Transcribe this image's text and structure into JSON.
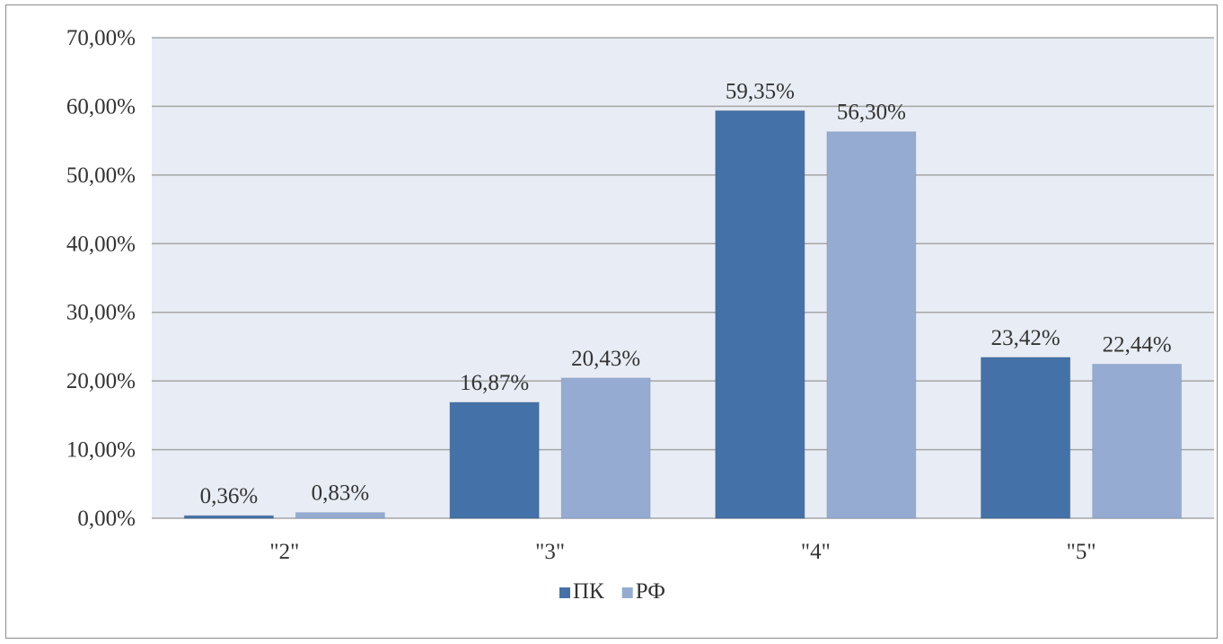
{
  "chart_data": {
    "type": "bar",
    "categories": [
      "\"2\"",
      "\"3\"",
      "\"4\"",
      "\"5\""
    ],
    "series": [
      {
        "name": "ПК",
        "values": [
          0.36,
          16.87,
          59.35,
          23.42
        ],
        "labels": [
          "0,36%",
          "16,87%",
          "59,35%",
          "23,42%"
        ],
        "color": "#4472a8"
      },
      {
        "name": "РФ",
        "values": [
          0.83,
          20.43,
          56.3,
          22.44
        ],
        "labels": [
          "0,83%",
          "20,43%",
          "56,30%",
          "22,44%"
        ],
        "color": "#95abd2"
      }
    ],
    "y_ticks": [
      0,
      10,
      20,
      30,
      40,
      50,
      60,
      70
    ],
    "y_tick_labels": [
      "0,00%",
      "10,00%",
      "20,00%",
      "30,00%",
      "40,00%",
      "50,00%",
      "60,00%",
      "70,00%"
    ],
    "ylim": [
      0,
      70
    ],
    "title": "",
    "xlabel": "",
    "ylabel": "",
    "grid": true,
    "legend_position": "bottom",
    "plot_background": "#e8ecf4",
    "gridline_color": "#a6a6a6"
  }
}
